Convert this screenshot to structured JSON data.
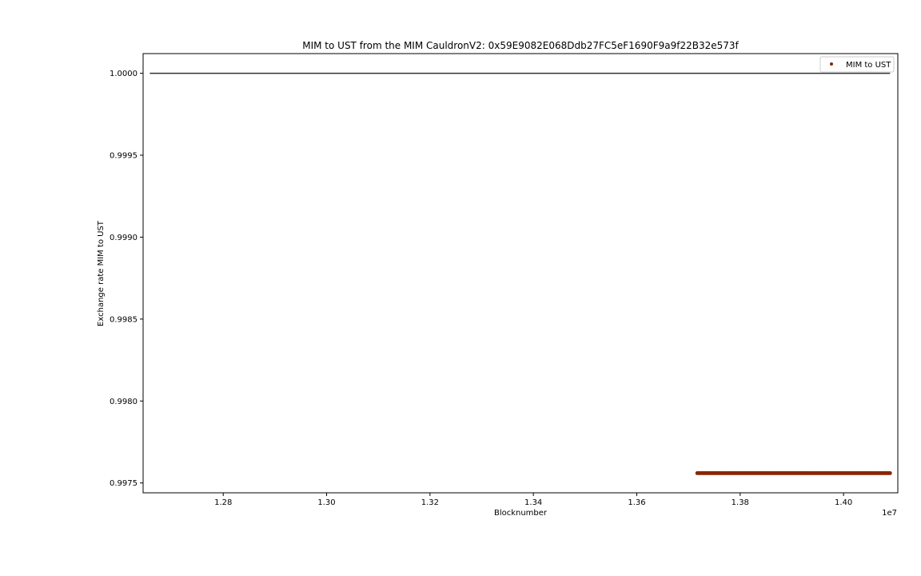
{
  "chart_data": {
    "type": "scatter",
    "title": "MIM to UST from the MIM CauldronV2: 0x59E9082E068Ddb27FC5eF1690F9a9f22B32e573f",
    "xlabel": "Blocknumber",
    "ylabel": "Exchange rate MIM to UST",
    "x_offset_label": "1e7",
    "xlim": [
      1.2645,
      1.4105
    ],
    "ylim": [
      0.99744,
      1.00012
    ],
    "xticks": [
      1.28,
      1.3,
      1.32,
      1.34,
      1.36,
      1.38,
      1.4
    ],
    "xtick_labels": [
      "1.28",
      "1.30",
      "1.32",
      "1.34",
      "1.36",
      "1.38",
      "1.40"
    ],
    "yticks": [
      0.9975,
      0.998,
      0.9985,
      0.999,
      0.9995,
      1.0
    ],
    "ytick_labels": [
      "0.9975",
      "0.9980",
      "0.9985",
      "0.9990",
      "0.9995",
      "1.0000"
    ],
    "grid": false,
    "legend_position": "top-right",
    "series": [
      {
        "name": "MIM to UST",
        "kind": "scatter",
        "color": "#8b2500",
        "x_start": 1.3717,
        "x_end": 1.409,
        "y": 0.99756
      }
    ],
    "reference_lines": [
      {
        "kind": "horizontal",
        "y": 1.0,
        "x_start": 1.2658,
        "x_end": 1.409,
        "color": "#333333"
      }
    ]
  }
}
